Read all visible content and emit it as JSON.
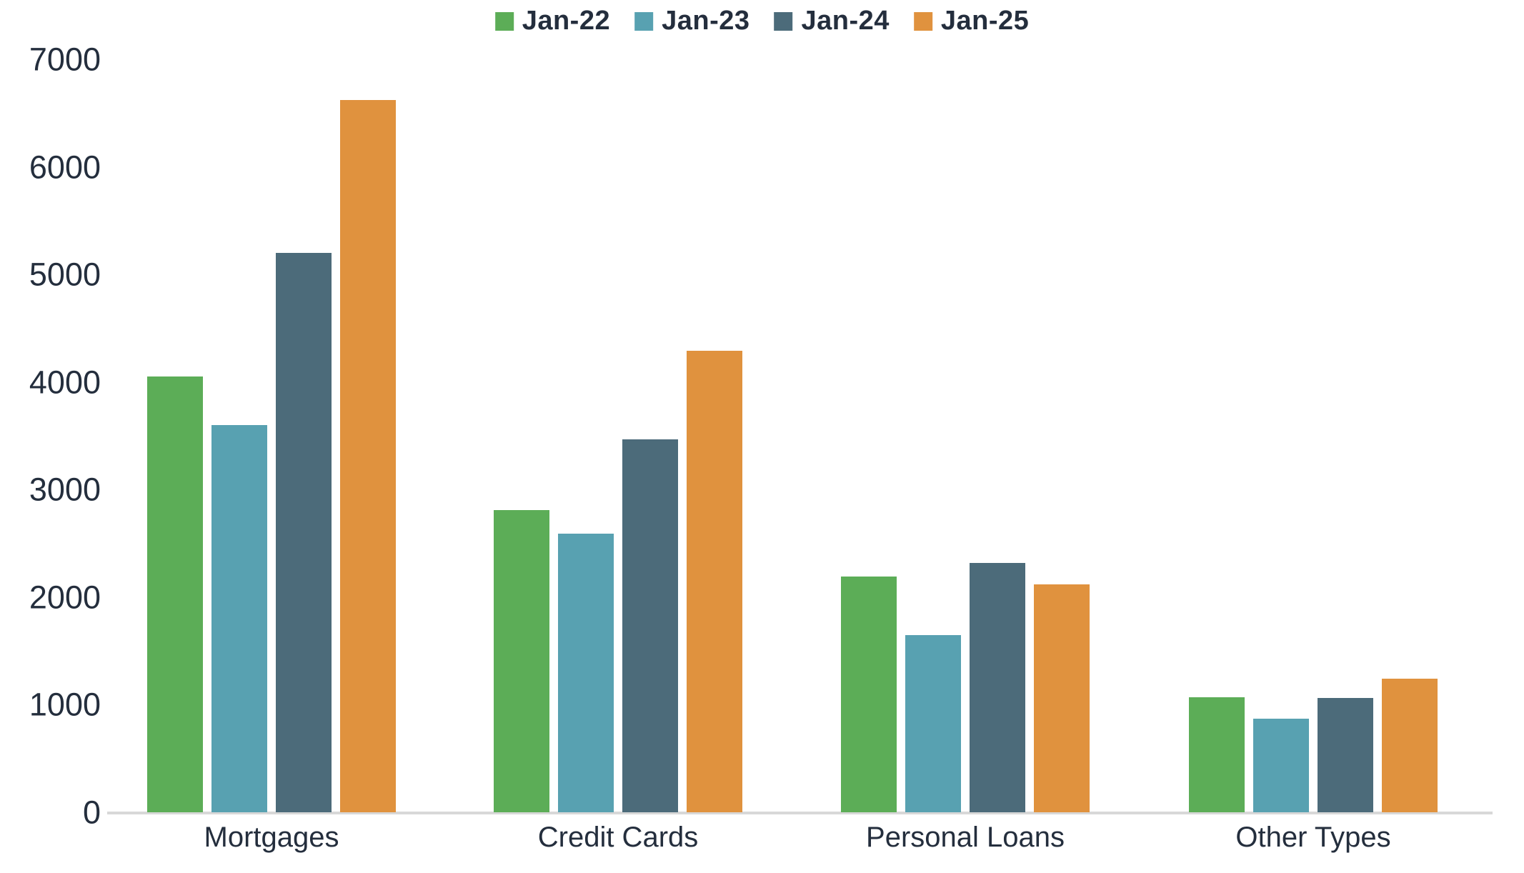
{
  "chart_data": {
    "type": "bar",
    "title": "",
    "xlabel": "",
    "ylabel": "",
    "categories": [
      "Mortgages",
      "Credit Cards",
      "Personal Loans",
      "Other Types"
    ],
    "series": [
      {
        "name": "Jan-22",
        "color": "#5CAD57",
        "values": [
          4050,
          2810,
          2190,
          1070
        ]
      },
      {
        "name": "Jan-23",
        "color": "#58A1B1",
        "values": [
          3600,
          2590,
          1650,
          870
        ]
      },
      {
        "name": "Jan-24",
        "color": "#4C6B7A",
        "values": [
          5200,
          3470,
          2320,
          1060
        ]
      },
      {
        "name": "Jan-25",
        "color": "#E0923E",
        "values": [
          6620,
          4290,
          2120,
          1240
        ]
      }
    ],
    "ylim": [
      0,
      7000
    ],
    "yticks": [
      0,
      1000,
      2000,
      3000,
      4000,
      5000,
      6000,
      7000
    ],
    "grid": false,
    "legend_position": "top-center",
    "background_color": "#FFFFFF",
    "axis_line_color": "#D8D8D8",
    "text_color": "#242E3D"
  }
}
